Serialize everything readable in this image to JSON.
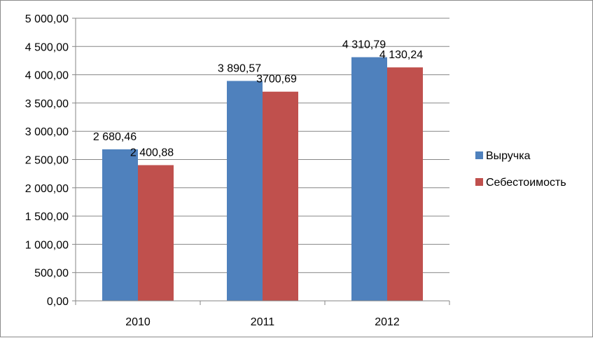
{
  "chart_data": {
    "type": "bar",
    "categories": [
      "2010",
      "2011",
      "2012"
    ],
    "series": [
      {
        "name": "Выручка",
        "color": "#4f81bd",
        "values": [
          2680.46,
          3890.57,
          4310.79
        ],
        "labels": [
          "2 680,46",
          "3 890,57",
          "4 310,79"
        ]
      },
      {
        "name": "Себестоимость",
        "color": "#c0504d",
        "values": [
          2400.88,
          3700.69,
          4130.24
        ],
        "labels": [
          "2 400,88",
          "3700,69",
          "4 130,24"
        ]
      }
    ],
    "y_ticks": [
      {
        "value": 0,
        "label": "0,00"
      },
      {
        "value": 500,
        "label": "500,00"
      },
      {
        "value": 1000,
        "label": "1 000,00"
      },
      {
        "value": 1500,
        "label": "1 500,00"
      },
      {
        "value": 2000,
        "label": "2 000,00"
      },
      {
        "value": 2500,
        "label": "2 500,00"
      },
      {
        "value": 3000,
        "label": "3 000,00"
      },
      {
        "value": 3500,
        "label": "3 500,00"
      },
      {
        "value": 4000,
        "label": "4 000,00"
      },
      {
        "value": 4500,
        "label": "4 500,00"
      },
      {
        "value": 5000,
        "label": "5 000,00"
      }
    ],
    "ylim": [
      0,
      5000
    ],
    "grid": true,
    "legend_position": "right",
    "title": "",
    "xlabel": "",
    "ylabel": ""
  }
}
